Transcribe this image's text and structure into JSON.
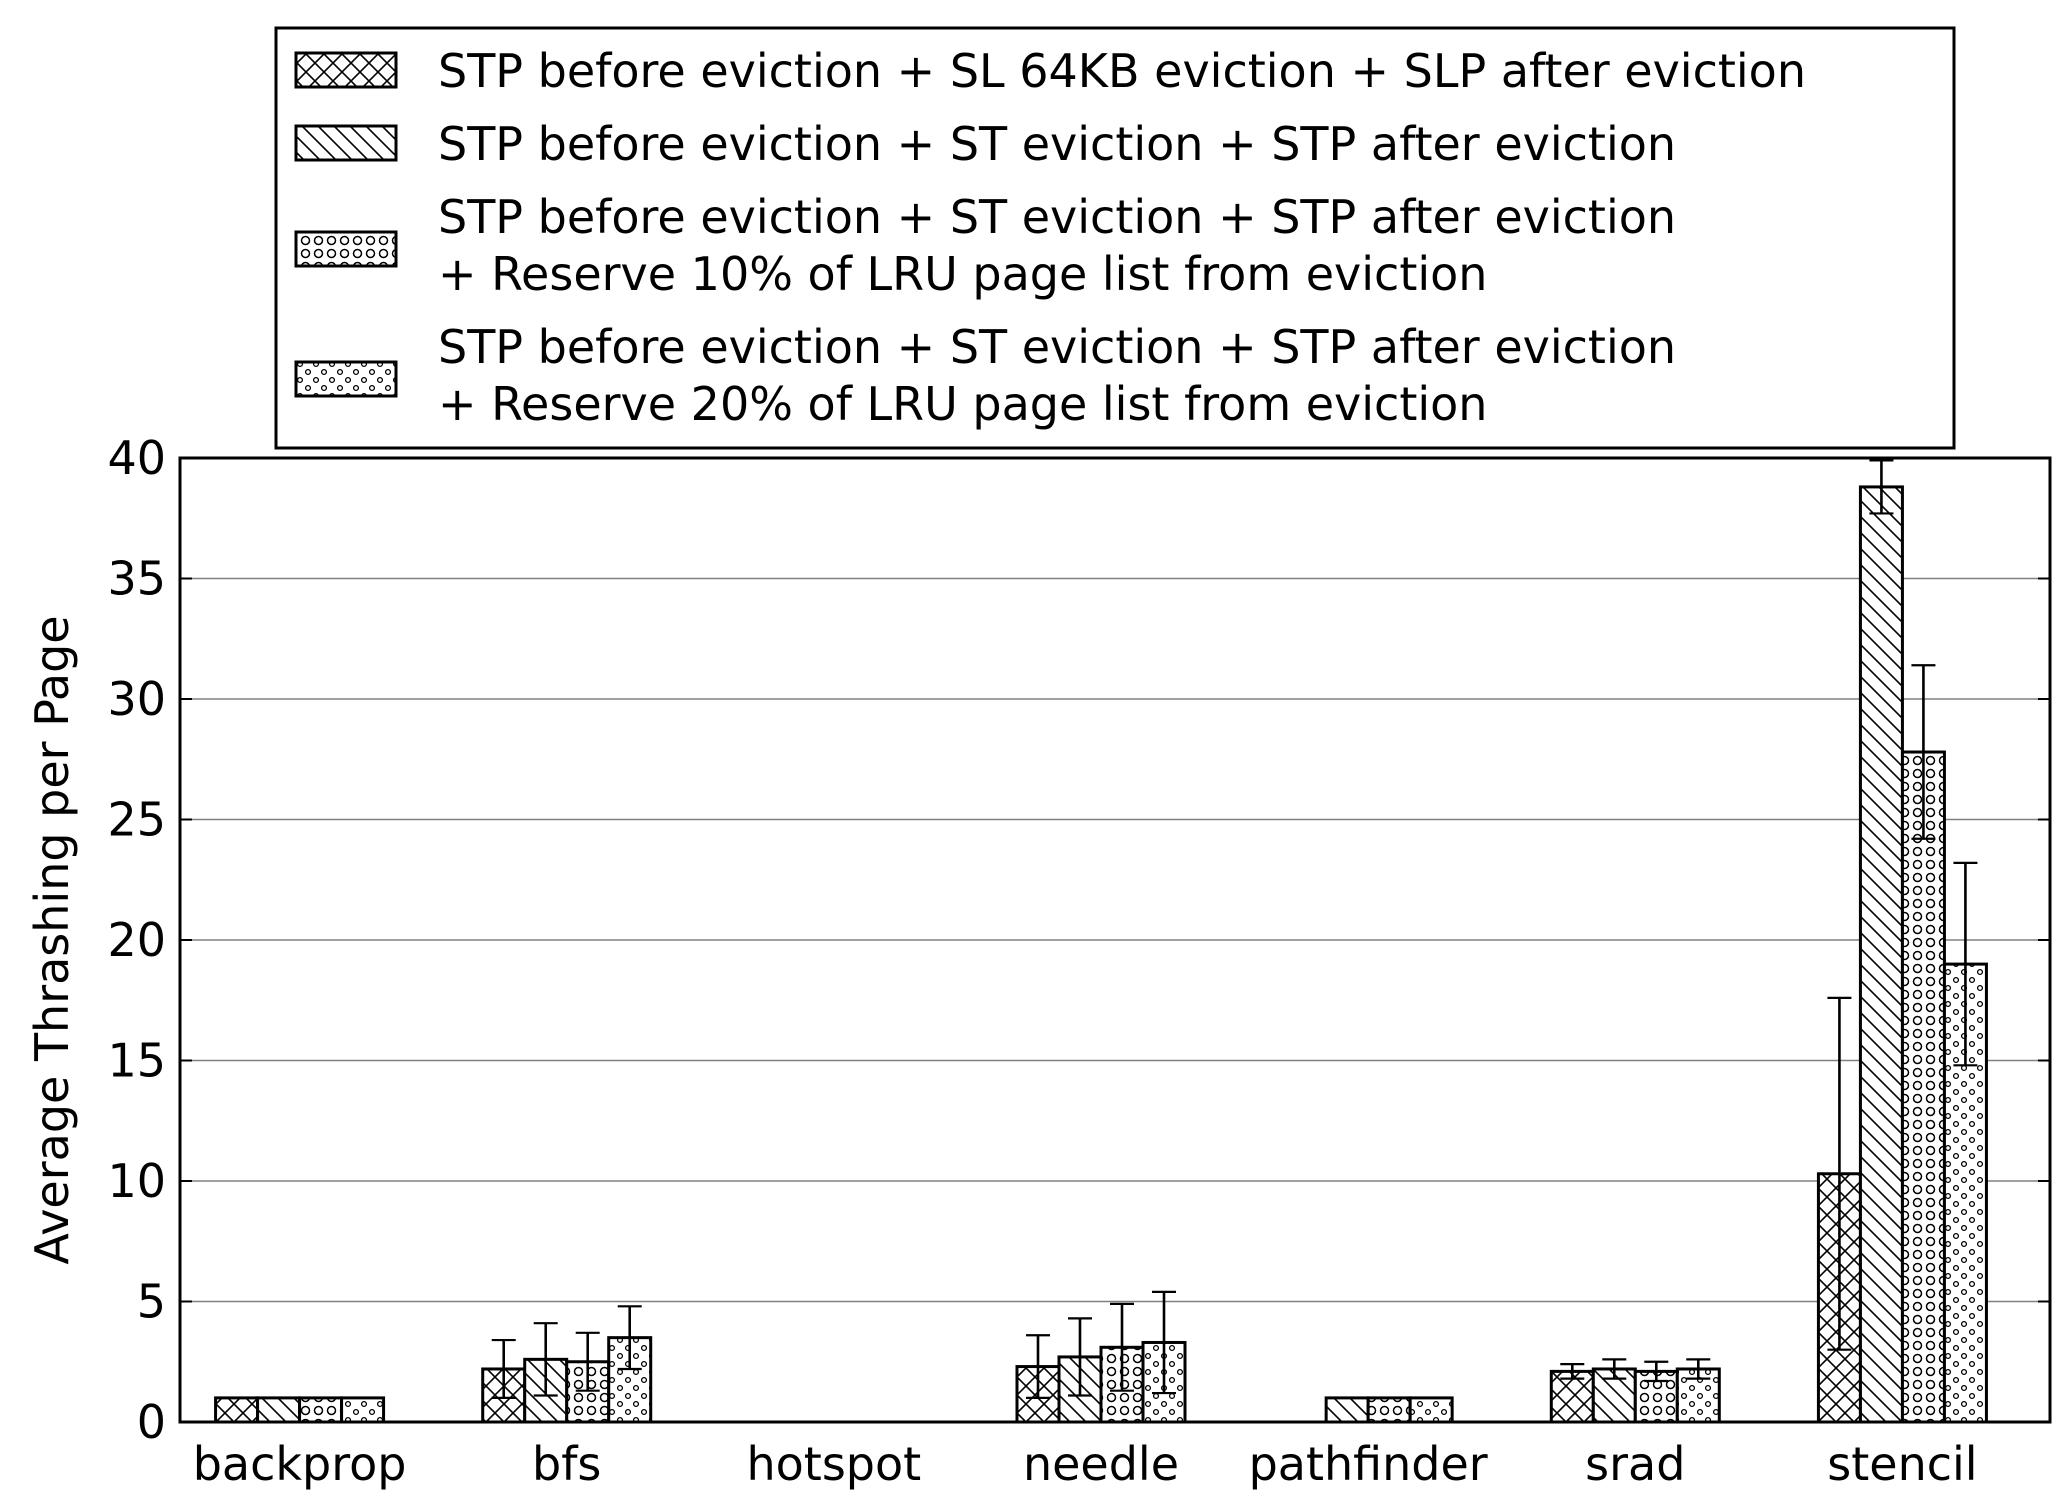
{
  "chart_data": {
    "type": "bar",
    "title": "",
    "xlabel": "",
    "ylabel": "Average Thrashing per Page",
    "ylim": [
      0,
      40
    ],
    "yticks": [
      0,
      5,
      10,
      15,
      20,
      25,
      30,
      35,
      40
    ],
    "grid": "horizontal",
    "legend_position": "top",
    "categories": [
      "backprop",
      "bfs",
      "hotspot",
      "needle",
      "pathfinder",
      "srad",
      "stencil"
    ],
    "series": [
      {
        "name": "STP before eviction + SL 64KB eviction + SLP after eviction",
        "pattern": "crosshatch",
        "values": [
          1.0,
          2.2,
          null,
          2.3,
          null,
          2.1,
          10.3
        ],
        "error": [
          null,
          1.2,
          null,
          1.3,
          null,
          0.3,
          7.3
        ]
      },
      {
        "name": "STP before eviction + ST eviction + STP after eviction",
        "pattern": "diagonal",
        "values": [
          1.0,
          2.6,
          null,
          2.7,
          1.0,
          2.2,
          38.8
        ],
        "error": [
          null,
          1.5,
          null,
          1.6,
          null,
          0.4,
          1.1
        ]
      },
      {
        "name_lines": [
          "STP before eviction + ST eviction + STP after eviction",
          " + Reserve 10% of LRU page list from eviction"
        ],
        "pattern": "circles",
        "values": [
          1.0,
          2.5,
          null,
          3.1,
          1.0,
          2.1,
          27.8
        ],
        "error": [
          null,
          1.2,
          null,
          1.8,
          null,
          0.4,
          3.6
        ]
      },
      {
        "name_lines": [
          "STP before eviction + ST eviction + STP after eviction",
          " + Reserve 20% of LRU page list from eviction"
        ],
        "pattern": "dots",
        "values": [
          1.0,
          3.5,
          null,
          3.3,
          1.0,
          2.2,
          19.0
        ],
        "error": [
          null,
          1.3,
          null,
          2.1,
          null,
          0.4,
          4.2
        ]
      }
    ]
  }
}
